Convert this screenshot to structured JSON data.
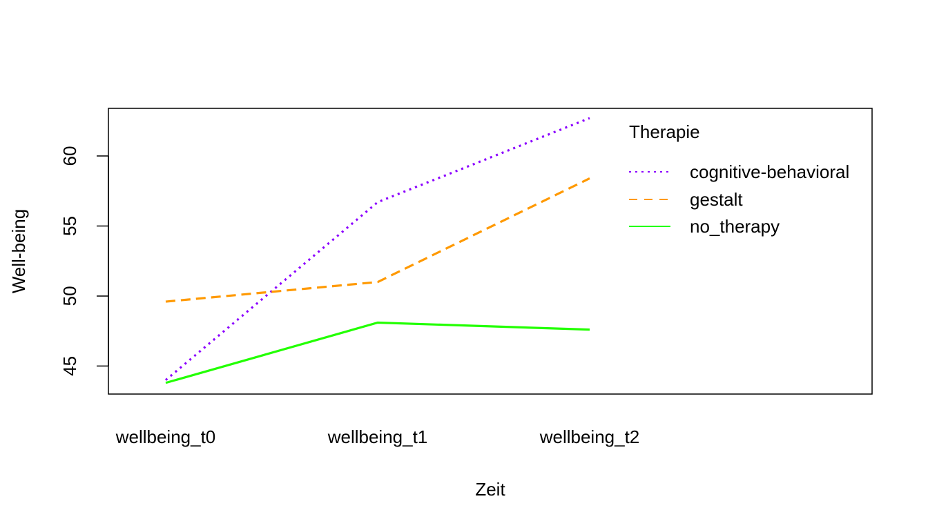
{
  "chart_data": {
    "type": "line",
    "title": "",
    "xlabel": "Zeit",
    "ylabel": "Well-being",
    "categories": [
      "wellbeing_t0",
      "wellbeing_t1",
      "wellbeing_t2"
    ],
    "yticks": [
      45,
      50,
      55,
      60
    ],
    "ylim": [
      43.0,
      63.4
    ],
    "grid": false,
    "legend": {
      "title": "Therapie",
      "placement": "top-right"
    },
    "series": [
      {
        "name": "cognitive-behavioral",
        "values": [
          44.0,
          56.7,
          62.7
        ],
        "color": "#8B00FF",
        "dash": "dotted"
      },
      {
        "name": "gestalt",
        "values": [
          49.6,
          51.0,
          58.4
        ],
        "color": "#FF9900",
        "dash": "dashed"
      },
      {
        "name": "no_therapy",
        "values": [
          43.8,
          48.1,
          47.6
        ],
        "color": "#22FF00",
        "dash": "solid"
      }
    ]
  }
}
